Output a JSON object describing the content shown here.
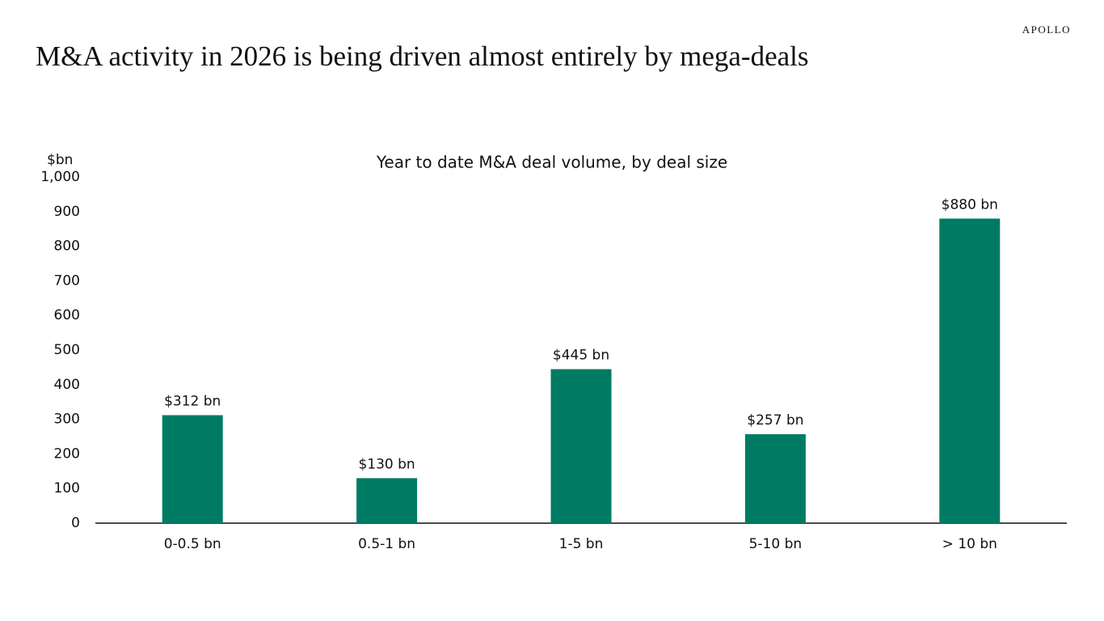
{
  "brand": "APOLLO",
  "headline": "M&A activity in 2026 is being driven almost entirely by mega-deals",
  "chart_data": {
    "type": "bar",
    "title": "Year to date M&A deal volume, by deal size",
    "y_label": "$bn",
    "categories": [
      "0-0.5 bn",
      "0.5-1 bn",
      "1-5 bn",
      "5-10 bn",
      "> 10 bn"
    ],
    "values": [
      312,
      130,
      445,
      257,
      880
    ],
    "value_labels": [
      "$312 bn",
      "$130 bn",
      "$445 bn",
      "$257 bn",
      "$880 bn"
    ],
    "color": "#007b63",
    "ylim": [
      0,
      1000
    ],
    "yticks": [
      0,
      100,
      200,
      300,
      400,
      500,
      600,
      700,
      800,
      900,
      {
        "value": 1000,
        "label": "1,000"
      }
    ],
    "grid": false
  }
}
